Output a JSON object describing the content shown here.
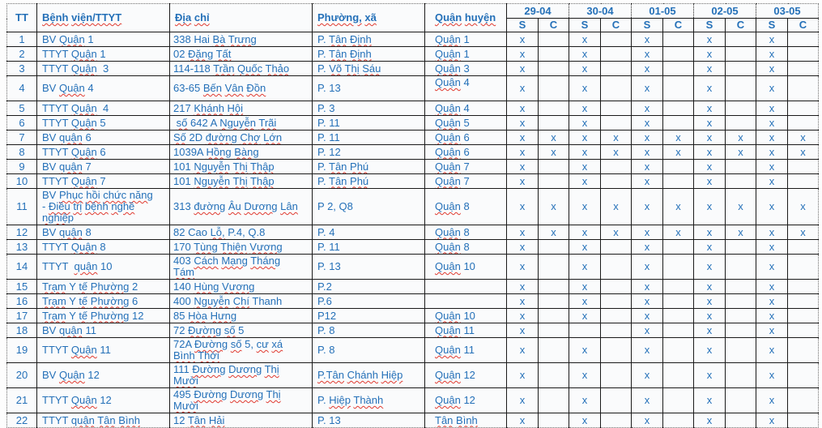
{
  "colors": {
    "text_blue": "#2470b8",
    "squiggle_red": "#e03a30",
    "grid": "#1a1a1a",
    "cell_bg": "#fafbfc"
  },
  "table": {
    "columns": {
      "tt": "TT",
      "name": "Bệnh viện/TTYT",
      "address": "Địa chỉ",
      "ward": "Phường, xã",
      "district": "Quận huyện"
    },
    "dates": [
      "29-04",
      "30-04",
      "01-05",
      "02-05",
      "03-05"
    ],
    "session_labels": [
      "S",
      "C"
    ],
    "rows": [
      {
        "tt": "1",
        "name": "BV Quận 1",
        "address": "338 Hai Bà Trưng",
        "ward": "P. Tân Định",
        "district": "Quận 1",
        "marks": [
          "x",
          "",
          "x",
          "",
          "x",
          "",
          "x",
          "",
          "x",
          ""
        ]
      },
      {
        "tt": "2",
        "name": "TTYT Quận 1",
        "address": "02 Đặng Tất",
        "ward": "P. Tân Định",
        "district": "Quận 1",
        "marks": [
          "x",
          "",
          "x",
          "",
          "x",
          "",
          "x",
          "",
          "x",
          ""
        ]
      },
      {
        "tt": "3",
        "name": "TTYT Quận  3",
        "address": "114-118 Trần Quốc Thảo",
        "ward": "P. Võ Thị Sáu",
        "district": "Quận 3",
        "marks": [
          "x",
          "",
          "x",
          "",
          "x",
          "",
          "x",
          "",
          "x",
          ""
        ]
      },
      {
        "tt": "4",
        "name": "BV Quận 4",
        "address": "63-65 Bến Vân Đồn",
        "ward": "P. 13",
        "district": "Quận 4\n ",
        "marks": [
          "x",
          "",
          "x",
          "",
          "x",
          "",
          "x",
          "",
          "x",
          ""
        ]
      },
      {
        "tt": "5",
        "name": "TTYT Quận  4",
        "address": "217 Khánh Hội",
        "ward": "P. 3",
        "district": "Quận 4",
        "marks": [
          "x",
          "",
          "x",
          "",
          "x",
          "",
          "x",
          "",
          "x",
          ""
        ]
      },
      {
        "tt": "6",
        "name": "TTYT Quận 5",
        "address": " số 642 A Nguyễn Trãi",
        "ward": "P. 11",
        "district": "Quận 5",
        "marks": [
          "x",
          "",
          "x",
          "",
          "x",
          "",
          "x",
          "",
          "x",
          ""
        ]
      },
      {
        "tt": "7",
        "name": "BV quận 6",
        "address": "Số 2D đường Chợ Lớn",
        "ward": "P. 11",
        "district": "Quận 6",
        "marks": [
          "x",
          "x",
          "x",
          "x",
          "x",
          "x",
          "x",
          "x",
          "x",
          "x"
        ]
      },
      {
        "tt": "8",
        "name": "TTYT Quận 6",
        "address": "1039A Hồng Bàng",
        "ward": "P. 12",
        "district": "Quận 6",
        "marks": [
          "x",
          "x",
          "x",
          "x",
          "x",
          "x",
          "x",
          "x",
          "x",
          "x"
        ]
      },
      {
        "tt": "9",
        "name": "BV quận 7",
        "address": "101 Nguyễn Thị Thập",
        "ward": "P. Tân Phú",
        "district": "Quận 7",
        "marks": [
          "x",
          "",
          "x",
          "",
          "x",
          "",
          "x",
          "",
          "x",
          ""
        ]
      },
      {
        "tt": "10",
        "name": "TTYT Quận 7",
        "address": "101 Nguyễn Thị Thập",
        "ward": "P. Tân Phú",
        "district": "Quận 7",
        "marks": [
          "x",
          "",
          "x",
          "",
          "x",
          "",
          "x",
          "",
          "x",
          ""
        ]
      },
      {
        "tt": "11",
        "name": "BV Phục hồi chức năng\n- Điều trị bệnh nghề\nnghiệp",
        "address": "313 đường Âu Dương Lân",
        "ward": "P 2, Q8",
        "district": "Quận 8",
        "marks": [
          "x",
          "x",
          "x",
          "x",
          "x",
          "x",
          "x",
          "x",
          "x",
          "x"
        ]
      },
      {
        "tt": "12",
        "name": "BV quận 8",
        "address": "82 Cao Lỗ, P.4, Q.8",
        "ward": "P. 4",
        "district": "Quận 8",
        "marks": [
          "x",
          "x",
          "x",
          "x",
          "x",
          "x",
          "x",
          "x",
          "x",
          "x"
        ]
      },
      {
        "tt": "13",
        "name": "TTYT Quận 8",
        "address": "170 Tùng Thiện Vương",
        "ward": "P. 11",
        "district": "Quận 8",
        "marks": [
          "x",
          "",
          "x",
          "",
          "x",
          "",
          "x",
          "",
          "x",
          ""
        ]
      },
      {
        "tt": "14",
        "name": "TTYT  quận 10",
        "address": "403 Cách Mạng Tháng\nTám",
        "ward": "P. 13",
        "district": "Quận 10",
        "marks": [
          "x",
          "",
          "x",
          "",
          "x",
          "",
          "x",
          "",
          "x",
          ""
        ]
      },
      {
        "tt": "15",
        "name": "Trạm Y tế Phường 2",
        "address": "140 Hùng Vương",
        "ward": "P.2",
        "district": "",
        "marks": [
          "x",
          "",
          "x",
          "",
          "x",
          "",
          "x",
          "",
          "x",
          ""
        ]
      },
      {
        "tt": "16",
        "name": "Trạm Y tế Phường 6",
        "address": "400 Nguyễn Chí Thanh",
        "ward": "P.6",
        "district": "",
        "marks": [
          "x",
          "",
          "x",
          "",
          "x",
          "",
          "x",
          "",
          "x",
          ""
        ]
      },
      {
        "tt": "17",
        "name": "Trạm Y tế Phường 12",
        "address": "85 Hòa Hưng",
        "ward": "P12",
        "district": "Quận 10",
        "marks": [
          "x",
          "",
          "x",
          "",
          "x",
          "",
          "x",
          "",
          "x",
          ""
        ]
      },
      {
        "tt": "18",
        "name": "BV quận 11",
        "address": "72 Đường số 5",
        "ward": "P. 8",
        "district": "Quận 11",
        "marks": [
          "x",
          "",
          "",
          "",
          "x",
          "",
          "x",
          "",
          "x",
          ""
        ]
      },
      {
        "tt": "19",
        "name": "TTYT Quận 11",
        "address": "72A Đường số 5, cư xá\nBình Thới",
        "ward": "P. 8",
        "district": "Quận 11",
        "marks": [
          "x",
          "",
          "x",
          "",
          "x",
          "",
          "x",
          "",
          "x",
          ""
        ]
      },
      {
        "tt": "20",
        "name": "BV Quận 12",
        "address": "111 Đường Dương Thị\nMười",
        "ward": "P.Tân Chánh Hiệp",
        "district": "Quận 12",
        "marks": [
          "x",
          "",
          "x",
          "",
          "x",
          "",
          "x",
          "",
          "x",
          ""
        ]
      },
      {
        "tt": "21",
        "name": "TTYT Quận 12",
        "address": "495 Đường Dương Thị\nMười",
        "ward": "P. Hiệp Thành",
        "district": "Quận 12",
        "marks": [
          "x",
          "",
          "x",
          "",
          "x",
          "",
          "x",
          "",
          "x",
          ""
        ]
      },
      {
        "tt": "22",
        "name": "TTYT quận Tân Bình",
        "address": "12 Tân Hải",
        "ward": "P. 13",
        "district": "Tân Bình",
        "marks": [
          "x",
          "",
          "x",
          "",
          "x",
          "",
          "x",
          "",
          "x",
          ""
        ]
      }
    ]
  }
}
